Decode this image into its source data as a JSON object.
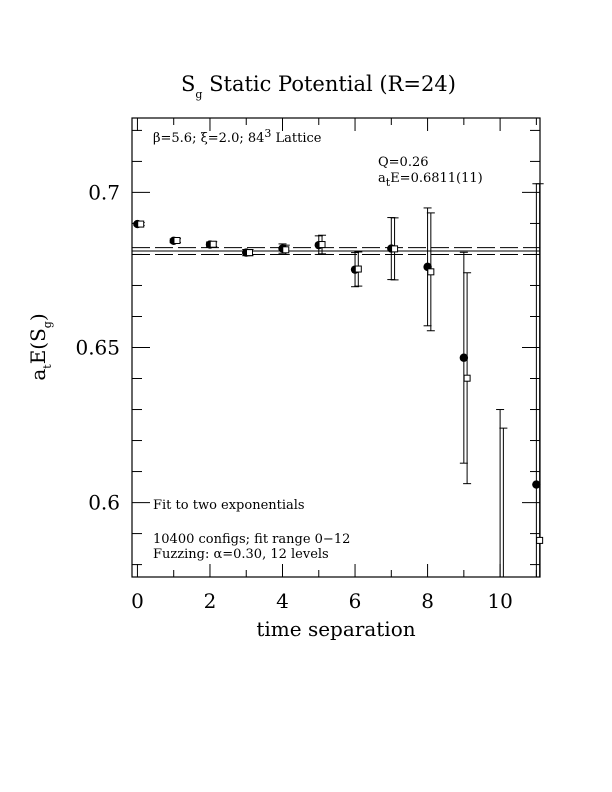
{
  "chart_data": {
    "type": "scatter",
    "title_main": "S",
    "title_sub": "g",
    "title_rest": " Static Potential (R=24)",
    "xlabel": "time separation",
    "ylabel": {
      "pre": "a",
      "sub1": "t",
      "mid": "E(S",
      "sub2": "g",
      "post": ")"
    },
    "xlim": [
      -0.15,
      11.1
    ],
    "ylim": [
      0.576,
      0.724
    ],
    "xticks": [
      0,
      2,
      4,
      6,
      8,
      10
    ],
    "xtick_labels": [
      "0",
      "2",
      "4",
      "6",
      "8",
      "10"
    ],
    "yticks": [
      0.6,
      0.65,
      0.7
    ],
    "ytick_labels": [
      "0.6",
      "0.65",
      "0.7"
    ],
    "grid": false,
    "annotations": {
      "lattice": {
        "beta": "β=5.6; ",
        "xi": "ξ=2.0; ",
        "L": "84",
        "exp": "3",
        "tail": " Lattice"
      },
      "q": "Q=0.26",
      "energy": {
        "pre": "a",
        "sub": "t",
        "post": "E=0.6811(11)"
      },
      "fit": "Fit to two exponentials",
      "configs": "10400 configs; fit range 0−12",
      "fuzz": "Fuzzing: α=0.30, 12 levels"
    },
    "fit": {
      "value": 0.6811,
      "error": 0.0011,
      "x_range": [
        -0.15,
        11.1
      ]
    },
    "series": [
      {
        "marker": "filled-circle",
        "points": [
          {
            "x": 0,
            "y": 0.6898,
            "err": 0.0005
          },
          {
            "x": 1,
            "y": 0.6844,
            "err": 0.0006
          },
          {
            "x": 2,
            "y": 0.6832,
            "err": 0.0008
          },
          {
            "x": 3,
            "y": 0.6806,
            "err": 0.001
          },
          {
            "x": 4,
            "y": 0.6819,
            "err": 0.0015
          },
          {
            "x": 5,
            "y": 0.683,
            "err": 0.003
          },
          {
            "x": 6,
            "y": 0.6751,
            "err": 0.0055
          },
          {
            "x": 7,
            "y": 0.6819,
            "err": 0.01
          },
          {
            "x": 8,
            "y": 0.676,
            "err": 0.019
          },
          {
            "x": 9,
            "y": 0.6467,
            "err": 0.034
          },
          {
            "x": 10,
            "y": null,
            "err_low": 0.576,
            "err_high": 0.63
          },
          {
            "x": 11,
            "y": 0.6058,
            "err": 0.097
          }
        ]
      },
      {
        "marker": "open-square",
        "points": [
          {
            "x": 0,
            "y": 0.6898,
            "err": 0.0005
          },
          {
            "x": 1,
            "y": 0.6845,
            "err": 0.0006
          },
          {
            "x": 2,
            "y": 0.6833,
            "err": 0.0008
          },
          {
            "x": 3,
            "y": 0.6806,
            "err": 0.001
          },
          {
            "x": 4,
            "y": 0.6815,
            "err": 0.0015
          },
          {
            "x": 5,
            "y": 0.6832,
            "err": 0.003
          },
          {
            "x": 6,
            "y": 0.6753,
            "err": 0.0055
          },
          {
            "x": 7,
            "y": 0.6818,
            "err": 0.01
          },
          {
            "x": 8,
            "y": 0.6744,
            "err": 0.019
          },
          {
            "x": 9,
            "y": 0.6401,
            "err": 0.034
          },
          {
            "x": 10,
            "y": null,
            "err_low": 0.576,
            "err_high": 0.624
          },
          {
            "x": 11,
            "y": 0.5878,
            "err": 0.115
          }
        ]
      }
    ]
  }
}
